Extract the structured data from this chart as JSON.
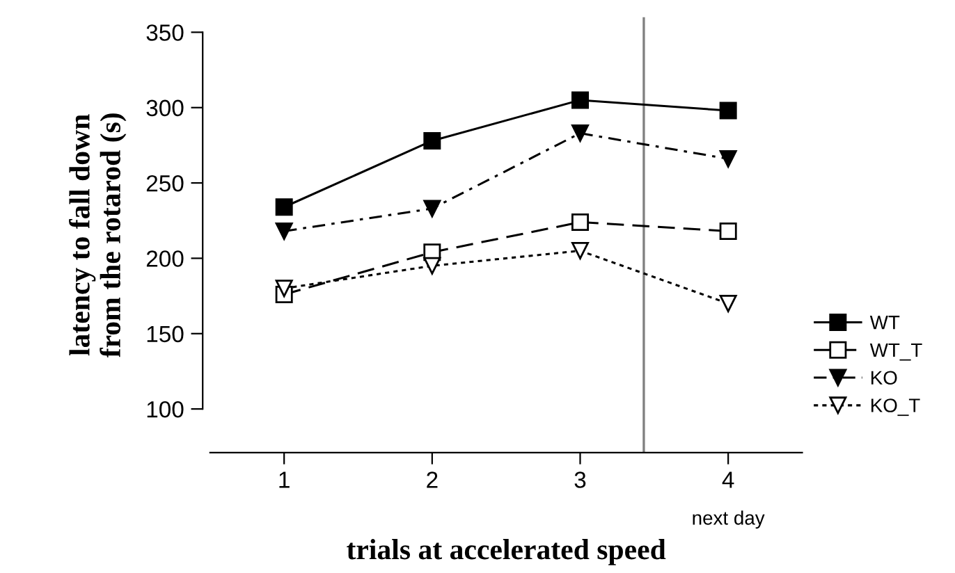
{
  "chart_data": {
    "type": "line",
    "xlabel": "trials at accelerated speed",
    "ylabel": "latency to fall down\nfrom the rotarod (s)",
    "x": [
      1,
      2,
      3,
      4
    ],
    "series": [
      {
        "name": "WT",
        "color": "#000000",
        "values": [
          234,
          278,
          305,
          298
        ],
        "marker": "square",
        "line_style": "solid"
      },
      {
        "name": "WT_T",
        "color": "#000000",
        "values": [
          176,
          204,
          224,
          218
        ],
        "marker": "square-open",
        "line_style": "dashed"
      },
      {
        "name": "KO",
        "color": "#000000",
        "values": [
          218,
          233,
          283,
          266
        ],
        "marker": "triangle",
        "line_style": "dashdot"
      },
      {
        "name": "KO_T",
        "color": "#000000",
        "values": [
          180,
          195,
          205,
          170
        ],
        "marker": "triangle-open",
        "line_style": "dotted"
      }
    ],
    "xlim": [
      0.5,
      4.5
    ],
    "xticks": [
      1,
      2,
      3,
      4
    ],
    "ylim": [
      71,
      360
    ],
    "yticks": [
      100,
      150,
      200,
      250,
      300,
      350
    ],
    "ref_lines": [
      {
        "axis": "x",
        "value": 3.43,
        "color": "#808080"
      }
    ],
    "annotations": [
      "next day"
    ],
    "grid": false,
    "legend": "right"
  }
}
